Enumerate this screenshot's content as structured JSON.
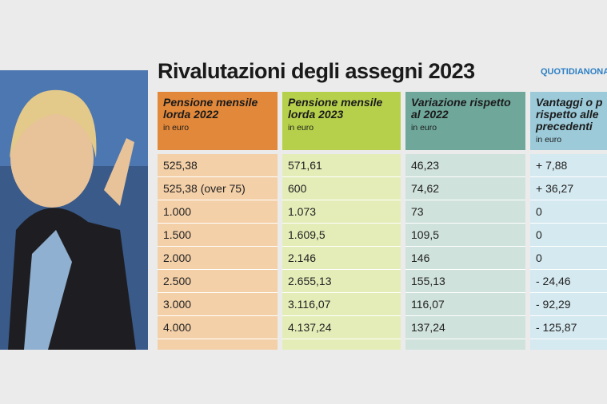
{
  "header": {
    "title": "Rivalutazioni degli assegni 2023",
    "brand": "QUOTIDIANONA"
  },
  "table": {
    "columns": [
      {
        "lines": [
          "Pensione mensile",
          "lorda 2022"
        ],
        "unit": "in euro"
      },
      {
        "lines": [
          "Pensione mensile",
          "lorda 2023"
        ],
        "unit": "in euro"
      },
      {
        "lines": [
          "Variazione rispetto",
          "al 2022"
        ],
        "unit": "in euro"
      },
      {
        "lines": [
          "Vantaggi o p",
          "rispetto alle",
          "precedenti"
        ],
        "unit": "in euro"
      }
    ],
    "rows": [
      [
        "525,38",
        "571,61",
        "46,23",
        "+ 7,88"
      ],
      [
        "525,38 (over 75)",
        "600",
        "74,62",
        "+ 36,27"
      ],
      [
        "1.000",
        "1.073",
        "73",
        "0"
      ],
      [
        "1.500",
        "1.609,5",
        "109,5",
        "0"
      ],
      [
        "2.000",
        "2.146",
        "146",
        "0"
      ],
      [
        "2.500",
        "2.655,13",
        "155,13",
        "- 24,46"
      ],
      [
        "3.000",
        "3.116,07",
        "116,07",
        "- 92,29"
      ],
      [
        "4.000",
        "4.137,24",
        "137,24",
        "- 125,87"
      ]
    ]
  }
}
